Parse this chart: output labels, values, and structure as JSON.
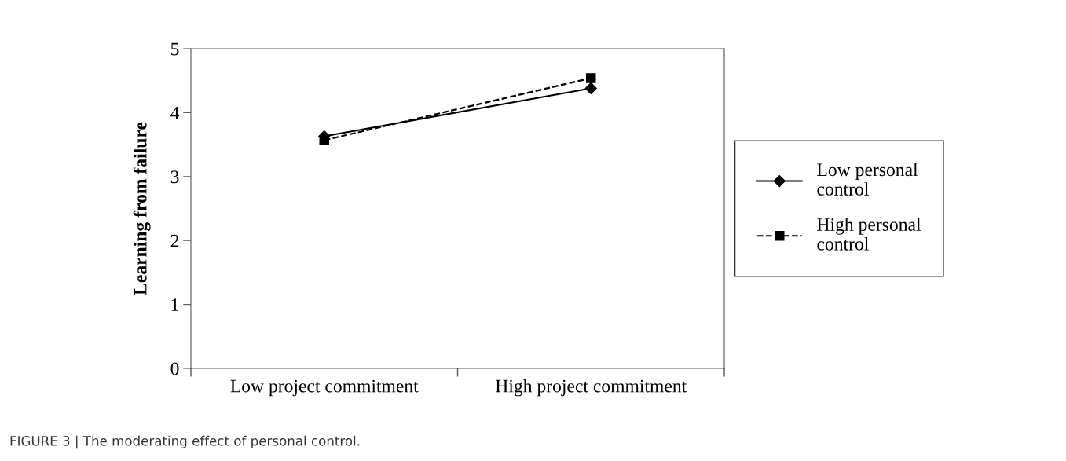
{
  "chart_data": {
    "type": "line",
    "ylabel": "Learning from failure",
    "categories": [
      "Low project commitment",
      "High project commitment"
    ],
    "series": [
      {
        "name": "Low personal control",
        "color": "#000000",
        "values": [
          3.63,
          4.38
        ],
        "marker": "diamond",
        "line_style": "solid"
      },
      {
        "name": "High personal control",
        "color": "#000000",
        "values": [
          3.57,
          4.54
        ],
        "marker": "square",
        "line_style": "dashed"
      }
    ],
    "ylim": [
      0,
      5
    ],
    "yticks": [
      0,
      1,
      2,
      3,
      4,
      5
    ],
    "grid": false,
    "legend": "right",
    "annotations": [
      "FIGURE 3 | The moderating effect of personal control."
    ]
  }
}
